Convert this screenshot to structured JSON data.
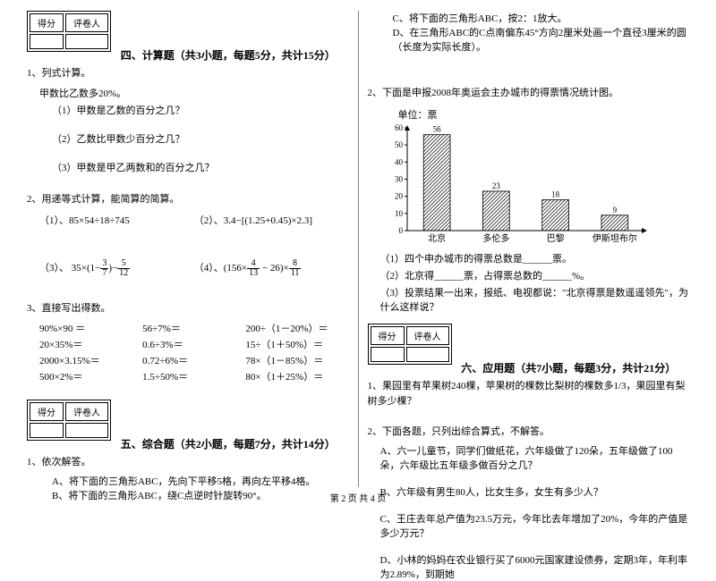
{
  "scorebox": {
    "score": "得分",
    "grader": "评卷人"
  },
  "section4": {
    "title": "四、计算题（共3小题，每题5分，共计15分）",
    "q1": {
      "stem": "1、列式计算。",
      "line1": "甲数比乙数多20%。",
      "a": "（1）甲数是乙数的百分之几？",
      "b": "（2）乙数比甲数少百分之几？",
      "c": "（3）甲数是甲乙两数和的百分之几？"
    },
    "q2": {
      "stem": "2、用递等式计算，能简算的简算。",
      "a": "（1）、85×54÷18÷745",
      "b": "（2）、3.4−[(1.25+0.45)×2.3]",
      "c_pre": "（3）、 35×(1−",
      "c_mid": ")−",
      "d_pre": "（4）、(156×",
      "d_mid": " − 26)×"
    },
    "q3": {
      "stem": "3、直接写出得数。",
      "rows": [
        [
          "90%×90 ＝",
          "56÷7%＝",
          "200÷（1－20%）＝"
        ],
        [
          "20×35%＝",
          "0.6÷3%＝",
          "15÷（1＋50%）＝"
        ],
        [
          "2000×3.15%＝",
          "0.72÷6%＝",
          "78×（1－85%）＝"
        ],
        [
          "500×2%＝",
          "1.5÷50%＝",
          "80×（1＋25%）＝"
        ]
      ]
    }
  },
  "section5": {
    "title": "五、综合题（共2小题，每题7分，共计14分）",
    "q1": {
      "stem": "1、依次解答。",
      "a": "A、将下面的三角形ABC，先向下平移5格，再向左平移4格。",
      "b": "B、将下面的三角形ABC，绕C点逆时针旋转90°。",
      "c": "C、将下面的三角形ABC，按2：1放大。",
      "d": "D、在三角形ABC的C点南偏东45°方向2厘米处画一个直径3厘米的圆（长度为实际长度）。"
    },
    "q2": {
      "stem": "2、下面是申报2008年奥运会主办城市的得票情况统计图。",
      "chart": {
        "unit": "单位：票",
        "ymax": 60,
        "ytick": 10,
        "categories": [
          "北京",
          "多伦多",
          "巴黎",
          "伊斯坦布尔"
        ],
        "values": [
          56,
          23,
          18,
          9
        ],
        "bar_fill": "pattern",
        "axis_color": "#000000",
        "grid_color": "#cccccc"
      },
      "a": "（1）四个申办城市的得票总数是______票。",
      "b": "（2）北京得______票，占得票总数的______%。",
      "c": "（3）投票结果一出来，报纸、电视都说：\"北京得票是数遥遥领先\"，为什么这样说？"
    }
  },
  "section6": {
    "title": "六、应用题（共7小题，每题3分，共计21分）",
    "q1": "1、果园里有苹果树240棵，苹果树的棵数比梨树的棵数多1/3，果园里有梨树多少棵？",
    "q2": {
      "stem": "2、下面各题，只列出综合算式，不解答。",
      "a": "A、六一儿童节，同学们做纸花，六年级做了120朵，五年级做了100朵，六年级比五年级多做百分之几？",
      "b": "B、六年级有男生80人，比女生多，女生有多少人？",
      "c": "C、王庄去年总产值为23.5万元，今年比去年增加了20%，今年的产值是多少万元？",
      "d": "D、小林的妈妈在农业银行买了6000元国家建设债券，定期3年，年利率为2.89%，到期她"
    }
  },
  "footer": "第 2 页 共 4 页",
  "fracs": {
    "f37": {
      "n": "3",
      "d": "7"
    },
    "f512": {
      "n": "5",
      "d": "12"
    },
    "f413": {
      "n": "4",
      "d": "13"
    },
    "f811": {
      "n": "8",
      "d": "11"
    }
  }
}
